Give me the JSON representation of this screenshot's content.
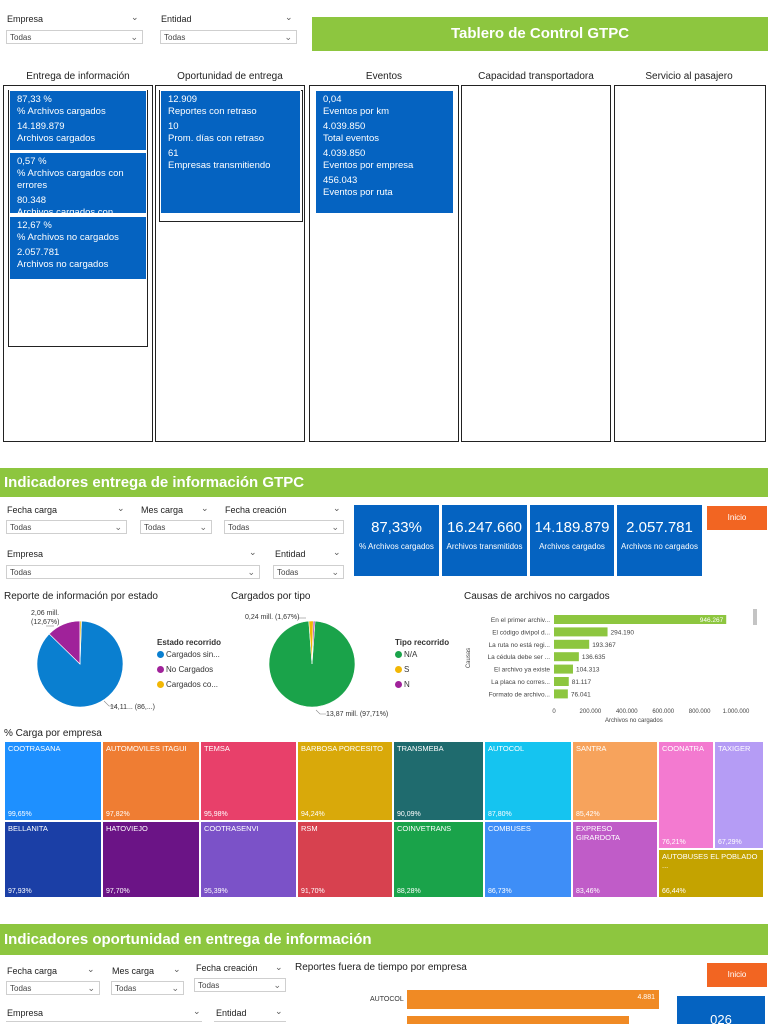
{
  "section1": {
    "slicers": [
      {
        "label": "Empresa",
        "value": "Todas"
      },
      {
        "label": "Entidad",
        "value": "Todas"
      }
    ],
    "title": "Tablero de Control GTPC",
    "columns": [
      "Entrega de información",
      "Oportunidad de entrega",
      "Eventos",
      "Capacidad transportadora",
      "Servicio al pasajero"
    ],
    "entrega_cards": [
      [
        "87,33 %",
        "% Archivos cargados",
        "14.189.879",
        "Archivos cargados"
      ],
      [
        "0,57 %",
        "% Archivos cargados con errores",
        "80.348",
        "Archivos cargados con errores"
      ],
      [
        "12,67 %",
        "% Archivos no cargados",
        "2.057.781",
        "Archivos no cargados"
      ]
    ],
    "oportunidad_card": [
      "12.909",
      "Reportes con retraso",
      "10",
      "Prom. días con retraso",
      "61",
      "Empresas transmitiendo"
    ],
    "eventos_card": [
      "0,04",
      "Eventos por km",
      "4.039.850",
      "Total eventos",
      "4.039.850",
      "Eventos por empresa",
      "456.043",
      "Eventos por ruta"
    ]
  },
  "section2": {
    "title": "Indicadores entrega de información GTPC",
    "slicers": [
      {
        "label": "Fecha carga",
        "value": "Todas"
      },
      {
        "label": "Mes carga",
        "value": "Todas"
      },
      {
        "label": "Fecha creación",
        "value": "Todas"
      },
      {
        "label": "Empresa",
        "value": "Todas"
      },
      {
        "label": "Entidad",
        "value": "Todas"
      }
    ],
    "kpis": [
      {
        "value": "87,33%",
        "label": "% Archivos cargados"
      },
      {
        "value": "16.247.660",
        "label": "Archivos transmitidos"
      },
      {
        "value": "14.189.879",
        "label": "Archivos cargados"
      },
      {
        "value": "2.057.781",
        "label": "Archivos no cargados"
      }
    ],
    "inicio_label": "Inicio",
    "pie1": {
      "title": "Reporte de información por estado",
      "label_a": "2,06 mill.",
      "label_a2": "(12,67%)",
      "label_b": "14,11... (86,...)",
      "legend_title": "Estado recorrido",
      "legend": [
        {
          "name": "Cargados sin...",
          "color": "#0a7fd0"
        },
        {
          "name": "No Cargados",
          "color": "#a0229a"
        },
        {
          "name": "Cargados co...",
          "color": "#f2b705"
        }
      ]
    },
    "pie2": {
      "title": "Cargados por tipo",
      "label_a": "0,24 mill. (1,67%)",
      "label_b": "13,87 mill. (97,71%)",
      "legend_title": "Tipo recorrido",
      "legend": [
        {
          "name": "N/A",
          "color": "#1aa34a"
        },
        {
          "name": "S",
          "color": "#f2b705"
        },
        {
          "name": "N",
          "color": "#a0229a"
        }
      ]
    },
    "bar_chart": {
      "title": "Causas de archivos no cargados",
      "ylabel": "Causas",
      "xlabel": "Archivos no cargados",
      "ticks": [
        "0",
        "200.000",
        "400.000",
        "600.000",
        "800.000",
        "1.000.000"
      ]
    },
    "treemap_title": "% Carga por empresa",
    "treemap": [
      {
        "name": "COOTRASANA",
        "pct": "99,65%",
        "color": "#1e90ff"
      },
      {
        "name": "AUTOMOVILES ITAGUI",
        "pct": "97,82%",
        "color": "#ef7d33"
      },
      {
        "name": "TEMSA",
        "pct": "95,98%",
        "color": "#e8406a"
      },
      {
        "name": "BARBOSA PORCESITO",
        "pct": "94,24%",
        "color": "#d9a90a"
      },
      {
        "name": "TRANSMEBA",
        "pct": "90,09%",
        "color": "#1f6b6e"
      },
      {
        "name": "AUTOCOL",
        "pct": "87,80%",
        "color": "#15c4f0"
      },
      {
        "name": "SANTRA",
        "pct": "85,42%",
        "color": "#f7a35c"
      },
      {
        "name": "COONATRA",
        "pct": "76,21%",
        "color": "#f37ad0"
      },
      {
        "name": "TAXIGER",
        "pct": "67,29%",
        "color": "#b59cf5"
      },
      {
        "name": "BELLANITA",
        "pct": "97,93%",
        "color": "#1b3fa6"
      },
      {
        "name": "HATOVIEJO",
        "pct": "97,70%",
        "color": "#6b1486"
      },
      {
        "name": "COOTRASENVI",
        "pct": "95,39%",
        "color": "#7b52c8"
      },
      {
        "name": "RSM",
        "pct": "91,70%",
        "color": "#d7414f"
      },
      {
        "name": "COINVETRANS",
        "pct": "88,28%",
        "color": "#1aa34a"
      },
      {
        "name": "COMBUSES",
        "pct": "86,73%",
        "color": "#3e8ef7"
      },
      {
        "name": "EXPRESO GIRARDOTA",
        "pct": "83,46%",
        "color": "#c05cc8"
      },
      {
        "name": "AUTOBUSES EL POBLADO ...",
        "pct": "66,44%",
        "color": "#c4a300"
      }
    ]
  },
  "section3": {
    "title": "Indicadores oportunidad en entrega de información",
    "slicers": [
      {
        "label": "Fecha carga",
        "value": "Todas"
      },
      {
        "label": "Mes carga",
        "value": "Todas"
      },
      {
        "label": "Fecha creación",
        "value": "Todas"
      },
      {
        "label": "Empresa",
        "value": ""
      },
      {
        "label": "Entidad",
        "value": ""
      }
    ],
    "chart_title": "Reportes fuera de tiempo por empresa",
    "bar_label": "AUTOCOL",
    "bar_value": "4.881",
    "inicio_label": "Inicio",
    "kpi_partial": "026"
  },
  "chart_data": [
    {
      "type": "bar",
      "title": "Causas de archivos no cargados",
      "orientation": "horizontal",
      "categories": [
        "En el primer archiv...",
        "El código divipol d...",
        "La ruta no está regi...",
        "La cédula debe ser ...",
        "El archivo ya existe",
        "La placa no corres...",
        "Formato de archivo..."
      ],
      "values": [
        946267,
        294190,
        193367,
        136635,
        104313,
        81117,
        76041
      ],
      "value_labels": [
        "946.267",
        "294.190",
        "193.367",
        "136.635",
        "104.313",
        "81.117",
        "76.041"
      ],
      "xlabel": "Archivos no cargados",
      "ylabel": "Causas",
      "xlim": [
        0,
        1000000
      ],
      "color": "#8dc63f"
    },
    {
      "type": "pie",
      "title": "Reporte de información por estado",
      "labels": [
        "Cargados sin...",
        "No Cargados",
        "Cargados co..."
      ],
      "values": [
        86.76,
        12.67,
        0.57
      ],
      "colors": [
        "#0a7fd0",
        "#a0229a",
        "#f2b705"
      ]
    },
    {
      "type": "pie",
      "title": "Cargados por tipo",
      "labels": [
        "N/A",
        "S",
        "N"
      ],
      "values": [
        97.71,
        1.67,
        0.62
      ],
      "colors": [
        "#1aa34a",
        "#f2b705",
        "#a0229a"
      ]
    },
    {
      "type": "bar",
      "title": "Reportes fuera de tiempo por empresa",
      "orientation": "horizontal",
      "categories": [
        "AUTOCOL"
      ],
      "values": [
        4881
      ],
      "color": "#f08a24"
    }
  ]
}
